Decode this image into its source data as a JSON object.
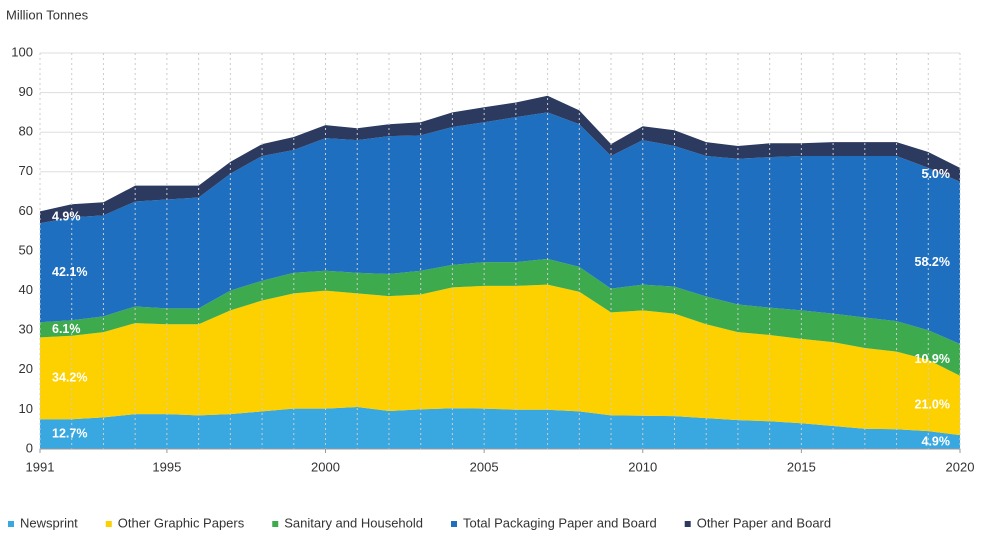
{
  "chart_data": {
    "type": "stacked-area",
    "y_label": "Million Tonnes",
    "x": [
      1991,
      1992,
      1993,
      1994,
      1995,
      1996,
      1997,
      1998,
      1999,
      2000,
      2001,
      2002,
      2003,
      2004,
      2005,
      2006,
      2007,
      2008,
      2009,
      2010,
      2011,
      2012,
      2013,
      2014,
      2015,
      2016,
      2017,
      2018,
      2019,
      2020
    ],
    "series": [
      {
        "name": "Newsprint",
        "color": "#3aa8e0",
        "start_label": "12.7%",
        "end_label": "4.9%",
        "values": [
          7.5,
          7.5,
          8,
          8.8,
          8.8,
          8.5,
          8.8,
          9.5,
          10.2,
          10.2,
          10.6,
          9.6,
          10,
          10.3,
          10.2,
          9.9,
          9.9,
          9.5,
          8.5,
          8.4,
          8.3,
          7.8,
          7.3,
          7,
          6.5,
          5.8,
          5.1,
          5,
          4.5,
          3.5
        ]
      },
      {
        "name": "Other Graphic Papers",
        "color": "#fdd000",
        "start_label": "34.2%",
        "end_label": "21.0%",
        "values": [
          20.7,
          21.1,
          21.5,
          23,
          22.7,
          23,
          26.2,
          28,
          29.1,
          29.8,
          28.7,
          29,
          29,
          30.5,
          31,
          31.3,
          31.6,
          30.2,
          26,
          26.6,
          25.9,
          23.7,
          22.2,
          21.8,
          21.3,
          21.2,
          20.4,
          19.6,
          18,
          15
        ]
      },
      {
        "name": "Sanitary and Household",
        "color": "#3daa4e",
        "start_label": "6.1%",
        "end_label": "10.9%",
        "values": [
          3.8,
          3.9,
          4,
          4.2,
          4,
          4,
          5,
          5,
          5.2,
          5,
          5.2,
          5.6,
          6,
          5.7,
          6,
          6,
          6.5,
          6.3,
          6,
          6.5,
          6.8,
          7,
          7,
          6.9,
          7.2,
          7.2,
          7.7,
          7.7,
          7.5,
          8
        ]
      },
      {
        "name": "Total Packaging Paper and Board",
        "color": "#1e6fbf",
        "start_label": "42.1%",
        "end_label": "58.2%",
        "values": [
          25,
          26,
          25.5,
          26.5,
          27.5,
          28,
          29.5,
          31.5,
          31,
          33.5,
          33.5,
          34.8,
          34.2,
          34.8,
          35.3,
          36.6,
          37,
          36,
          33.5,
          36.5,
          35.5,
          35.5,
          36.8,
          38,
          39,
          39.8,
          40.8,
          41.7,
          41,
          41
        ]
      },
      {
        "name": "Other Paper and Board",
        "color": "#2b3a5e",
        "start_label": "4.9%",
        "end_label": "5.0%",
        "values": [
          3,
          3.3,
          3.3,
          4,
          3.5,
          3,
          3,
          3,
          3.3,
          3.3,
          3,
          3,
          3.3,
          3.7,
          3.8,
          3.7,
          4.2,
          3.5,
          3,
          3.5,
          4,
          3.5,
          3.2,
          3.5,
          3.2,
          3.5,
          3.5,
          3.5,
          4,
          3.5
        ]
      }
    ],
    "xlim": [
      1991,
      2020
    ],
    "xticks": [
      1991,
      1995,
      2000,
      2005,
      2010,
      2015,
      2020
    ],
    "ylim": [
      0,
      100
    ],
    "yticks": [
      0,
      10,
      20,
      30,
      40,
      50,
      60,
      70,
      80,
      90,
      100
    ],
    "grid": true,
    "legend": "bottom"
  }
}
